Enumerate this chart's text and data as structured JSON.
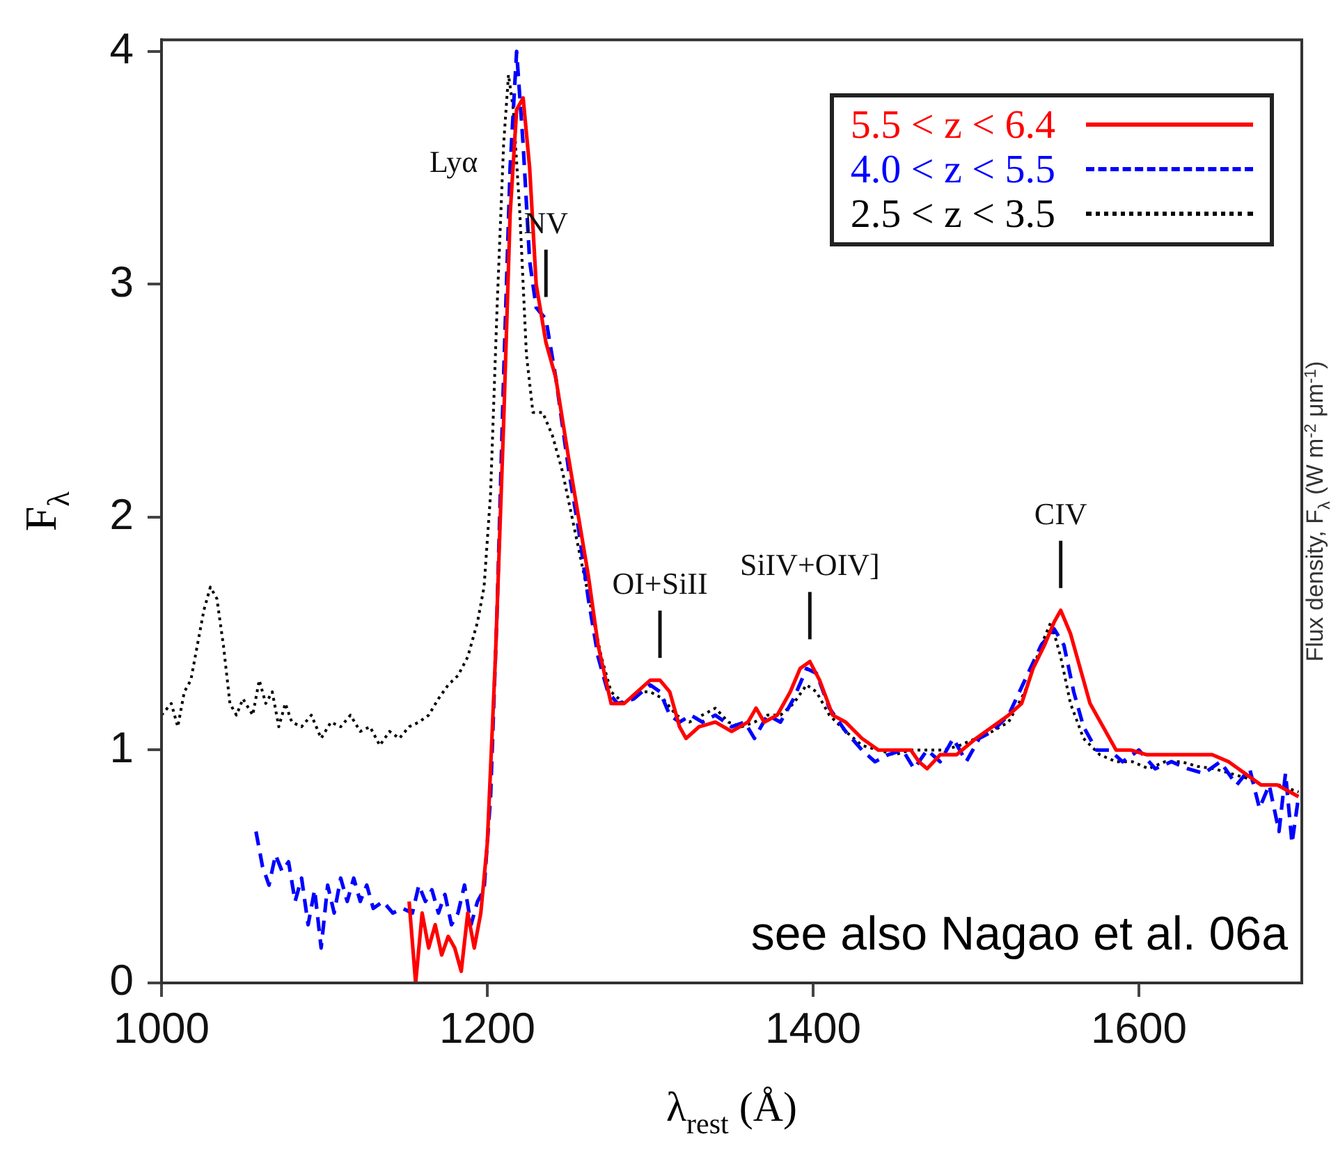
{
  "chart_data": {
    "type": "line",
    "xlabel": "λ$_{rest}$ (Å)",
    "ylabel": "F$_{λ}$",
    "y2label": "Flux density, F$_{λ}$ (W m$^{-2}$ μm$^{-1}$)",
    "xlim": [
      1000,
      1700
    ],
    "ylim": [
      0,
      4.05
    ],
    "xticks": [
      1000,
      1200,
      1400,
      1600
    ],
    "yticks": [
      0,
      1,
      2,
      3,
      4
    ],
    "legend": "top right",
    "annotations": [
      {
        "text": "Lyα",
        "x": 1213,
        "y": 3.9
      },
      {
        "text": "NV",
        "x": 1236,
        "y": 2.85
      },
      {
        "text": "OI+SiII",
        "x": 1306,
        "y": 1.3
      },
      {
        "text": "SiIV+OIV]",
        "x": 1398,
        "y": 1.38
      },
      {
        "text": "CIV",
        "x": 1552,
        "y": 1.6
      },
      "see also Nagao et al. 06a"
    ],
    "series": [
      {
        "name": "5.5 < z < 6.4",
        "color": "#ff0000",
        "line_style": "solid",
        "x": [
          1152,
          1156,
          1160,
          1164,
          1168,
          1172,
          1176,
          1180,
          1184,
          1188,
          1192,
          1196,
          1200,
          1205,
          1210,
          1214,
          1218,
          1222,
          1226,
          1230,
          1236,
          1242,
          1250,
          1256,
          1262,
          1268,
          1276,
          1284,
          1292,
          1300,
          1306,
          1312,
          1318,
          1322,
          1330,
          1340,
          1350,
          1360,
          1365,
          1370,
          1378,
          1386,
          1392,
          1398,
          1404,
          1412,
          1420,
          1430,
          1440,
          1450,
          1460,
          1465,
          1470,
          1478,
          1488,
          1500,
          1510,
          1520,
          1528,
          1535,
          1542,
          1548,
          1552,
          1558,
          1564,
          1570,
          1578,
          1586,
          1595,
          1605,
          1615,
          1625,
          1635,
          1645,
          1655,
          1665,
          1675,
          1685,
          1698
        ],
        "values": [
          0.35,
          0.0,
          0.3,
          0.15,
          0.25,
          0.12,
          0.2,
          0.15,
          0.05,
          0.3,
          0.15,
          0.3,
          0.6,
          1.4,
          2.4,
          3.3,
          3.75,
          3.8,
          3.5,
          3.0,
          2.75,
          2.6,
          2.25,
          2.0,
          1.75,
          1.45,
          1.2,
          1.2,
          1.25,
          1.3,
          1.3,
          1.25,
          1.1,
          1.05,
          1.1,
          1.12,
          1.08,
          1.12,
          1.18,
          1.12,
          1.15,
          1.25,
          1.35,
          1.38,
          1.3,
          1.15,
          1.12,
          1.05,
          1.0,
          1.0,
          1.0,
          0.95,
          0.92,
          0.98,
          0.98,
          1.05,
          1.1,
          1.15,
          1.2,
          1.35,
          1.45,
          1.55,
          1.6,
          1.5,
          1.35,
          1.2,
          1.1,
          1.0,
          1.0,
          0.98,
          0.98,
          0.98,
          0.98,
          0.98,
          0.95,
          0.9,
          0.85,
          0.85,
          0.8
        ]
      },
      {
        "name": "4.0 < z < 5.5",
        "color": "#0000ff",
        "line_style": "dashed",
        "x": [
          1058,
          1062,
          1066,
          1070,
          1074,
          1078,
          1082,
          1086,
          1090,
          1094,
          1098,
          1102,
          1106,
          1110,
          1114,
          1118,
          1122,
          1126,
          1130,
          1136,
          1142,
          1148,
          1154,
          1158,
          1162,
          1166,
          1170,
          1174,
          1178,
          1182,
          1186,
          1190,
          1194,
          1198,
          1202,
          1206,
          1210,
          1214,
          1218,
          1222,
          1226,
          1230,
          1236,
          1242,
          1250,
          1256,
          1262,
          1268,
          1274,
          1280,
          1290,
          1300,
          1306,
          1312,
          1318,
          1325,
          1332,
          1340,
          1350,
          1358,
          1364,
          1372,
          1380,
          1388,
          1396,
          1402,
          1410,
          1420,
          1430,
          1438,
          1446,
          1455,
          1462,
          1470,
          1478,
          1486,
          1494,
          1502,
          1510,
          1520,
          1530,
          1540,
          1548,
          1554,
          1560,
          1566,
          1574,
          1582,
          1590,
          1600,
          1610,
          1620,
          1630,
          1640,
          1650,
          1660,
          1668,
          1674,
          1680,
          1686,
          1690,
          1694,
          1698
        ],
        "values": [
          0.65,
          0.5,
          0.42,
          0.55,
          0.48,
          0.52,
          0.35,
          0.45,
          0.25,
          0.4,
          0.15,
          0.42,
          0.3,
          0.45,
          0.35,
          0.45,
          0.35,
          0.42,
          0.32,
          0.35,
          0.3,
          0.32,
          0.3,
          0.42,
          0.35,
          0.4,
          0.3,
          0.38,
          0.25,
          0.3,
          0.42,
          0.25,
          0.35,
          0.4,
          0.8,
          1.6,
          2.6,
          3.5,
          4.0,
          3.6,
          3.1,
          2.9,
          2.85,
          2.6,
          2.2,
          1.95,
          1.65,
          1.4,
          1.25,
          1.2,
          1.22,
          1.28,
          1.25,
          1.15,
          1.12,
          1.15,
          1.12,
          1.15,
          1.1,
          1.12,
          1.05,
          1.15,
          1.12,
          1.22,
          1.35,
          1.33,
          1.18,
          1.08,
          1.0,
          0.95,
          0.98,
          1.0,
          0.92,
          1.0,
          0.95,
          1.05,
          0.95,
          1.05,
          1.08,
          1.15,
          1.3,
          1.45,
          1.52,
          1.45,
          1.25,
          1.1,
          1.0,
          1.0,
          0.95,
          1.0,
          0.92,
          0.95,
          0.92,
          0.9,
          0.95,
          0.85,
          0.92,
          0.75,
          0.85,
          0.65,
          0.9,
          0.6,
          0.8
        ]
      },
      {
        "name": "2.5 < z < 3.5",
        "color": "#000000",
        "line_style": "dotted",
        "x": [
          1000,
          1006,
          1010,
          1014,
          1018,
          1022,
          1026,
          1030,
          1034,
          1038,
          1042,
          1046,
          1050,
          1056,
          1060,
          1064,
          1068,
          1072,
          1076,
          1080,
          1086,
          1092,
          1098,
          1104,
          1110,
          1116,
          1122,
          1128,
          1134,
          1140,
          1146,
          1152,
          1158,
          1164,
          1170,
          1176,
          1182,
          1188,
          1194,
          1198,
          1202,
          1206,
          1210,
          1213,
          1216,
          1220,
          1224,
          1228,
          1234,
          1240,
          1246,
          1252,
          1258,
          1264,
          1270,
          1276,
          1284,
          1292,
          1300,
          1308,
          1316,
          1324,
          1332,
          1340,
          1348,
          1356,
          1364,
          1372,
          1380,
          1388,
          1396,
          1402,
          1410,
          1420,
          1430,
          1440,
          1450,
          1460,
          1470,
          1480,
          1490,
          1500,
          1510,
          1520,
          1530,
          1540,
          1546,
          1552,
          1558,
          1566,
          1576,
          1586,
          1596,
          1606,
          1616,
          1626,
          1636,
          1646,
          1656,
          1666,
          1676,
          1686,
          1698
        ],
        "values": [
          1.15,
          1.2,
          1.1,
          1.25,
          1.3,
          1.45,
          1.6,
          1.7,
          1.65,
          1.45,
          1.2,
          1.15,
          1.22,
          1.15,
          1.3,
          1.2,
          1.25,
          1.1,
          1.2,
          1.12,
          1.1,
          1.15,
          1.05,
          1.12,
          1.1,
          1.15,
          1.08,
          1.1,
          1.02,
          1.08,
          1.05,
          1.1,
          1.12,
          1.15,
          1.22,
          1.28,
          1.32,
          1.4,
          1.55,
          1.7,
          2.1,
          2.9,
          3.6,
          3.9,
          3.75,
          3.3,
          2.7,
          2.45,
          2.45,
          2.35,
          2.2,
          2.0,
          1.8,
          1.6,
          1.4,
          1.25,
          1.2,
          1.25,
          1.25,
          1.22,
          1.15,
          1.12,
          1.15,
          1.18,
          1.12,
          1.1,
          1.12,
          1.15,
          1.15,
          1.2,
          1.28,
          1.25,
          1.15,
          1.08,
          1.02,
          1.0,
          0.98,
          1.0,
          1.0,
          1.0,
          1.02,
          1.05,
          1.08,
          1.12,
          1.25,
          1.45,
          1.55,
          1.4,
          1.2,
          1.05,
          0.98,
          0.95,
          0.95,
          0.92,
          0.95,
          0.95,
          0.93,
          0.92,
          0.9,
          0.88,
          0.85,
          0.85,
          0.82
        ]
      }
    ]
  }
}
